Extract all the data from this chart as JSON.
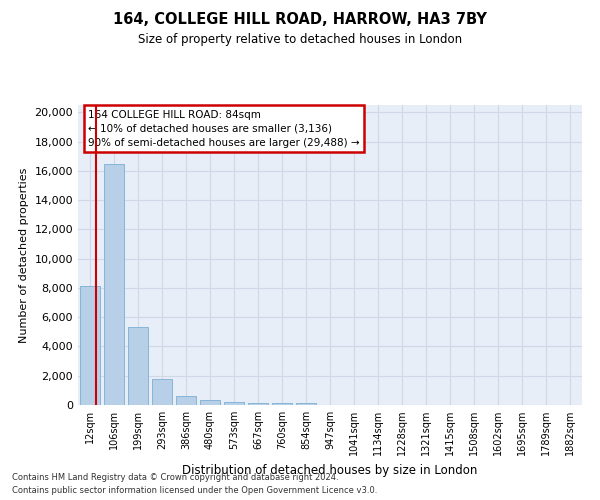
{
  "title_line1": "164, COLLEGE HILL ROAD, HARROW, HA3 7BY",
  "title_line2": "Size of property relative to detached houses in London",
  "xlabel": "Distribution of detached houses by size in London",
  "ylabel": "Number of detached properties",
  "categories": [
    "12sqm",
    "106sqm",
    "199sqm",
    "293sqm",
    "386sqm",
    "480sqm",
    "573sqm",
    "667sqm",
    "760sqm",
    "854sqm",
    "947sqm",
    "1041sqm",
    "1134sqm",
    "1228sqm",
    "1321sqm",
    "1415sqm",
    "1508sqm",
    "1602sqm",
    "1695sqm",
    "1789sqm",
    "1882sqm"
  ],
  "values": [
    8100,
    16500,
    5300,
    1750,
    620,
    330,
    200,
    160,
    130,
    110,
    0,
    0,
    0,
    0,
    0,
    0,
    0,
    0,
    0,
    0,
    0
  ],
  "bar_color": "#b8cfe8",
  "bar_edge_color": "#7aafd4",
  "annotation_text": "164 COLLEGE HILL ROAD: 84sqm\n← 10% of detached houses are smaller (3,136)\n90% of semi-detached houses are larger (29,488) →",
  "annotation_box_facecolor": "#ffffff",
  "annotation_box_edgecolor": "#cc0000",
  "property_line_color": "#cc0000",
  "property_line_x": 0.18,
  "ylim_max": 20500,
  "yticks": [
    0,
    2000,
    4000,
    6000,
    8000,
    10000,
    12000,
    14000,
    16000,
    18000,
    20000
  ],
  "background_color": "#e8eef8",
  "grid_color": "#d0d8e8",
  "footer_line1": "Contains HM Land Registry data © Crown copyright and database right 2024.",
  "footer_line2": "Contains public sector information licensed under the Open Government Licence v3.0."
}
